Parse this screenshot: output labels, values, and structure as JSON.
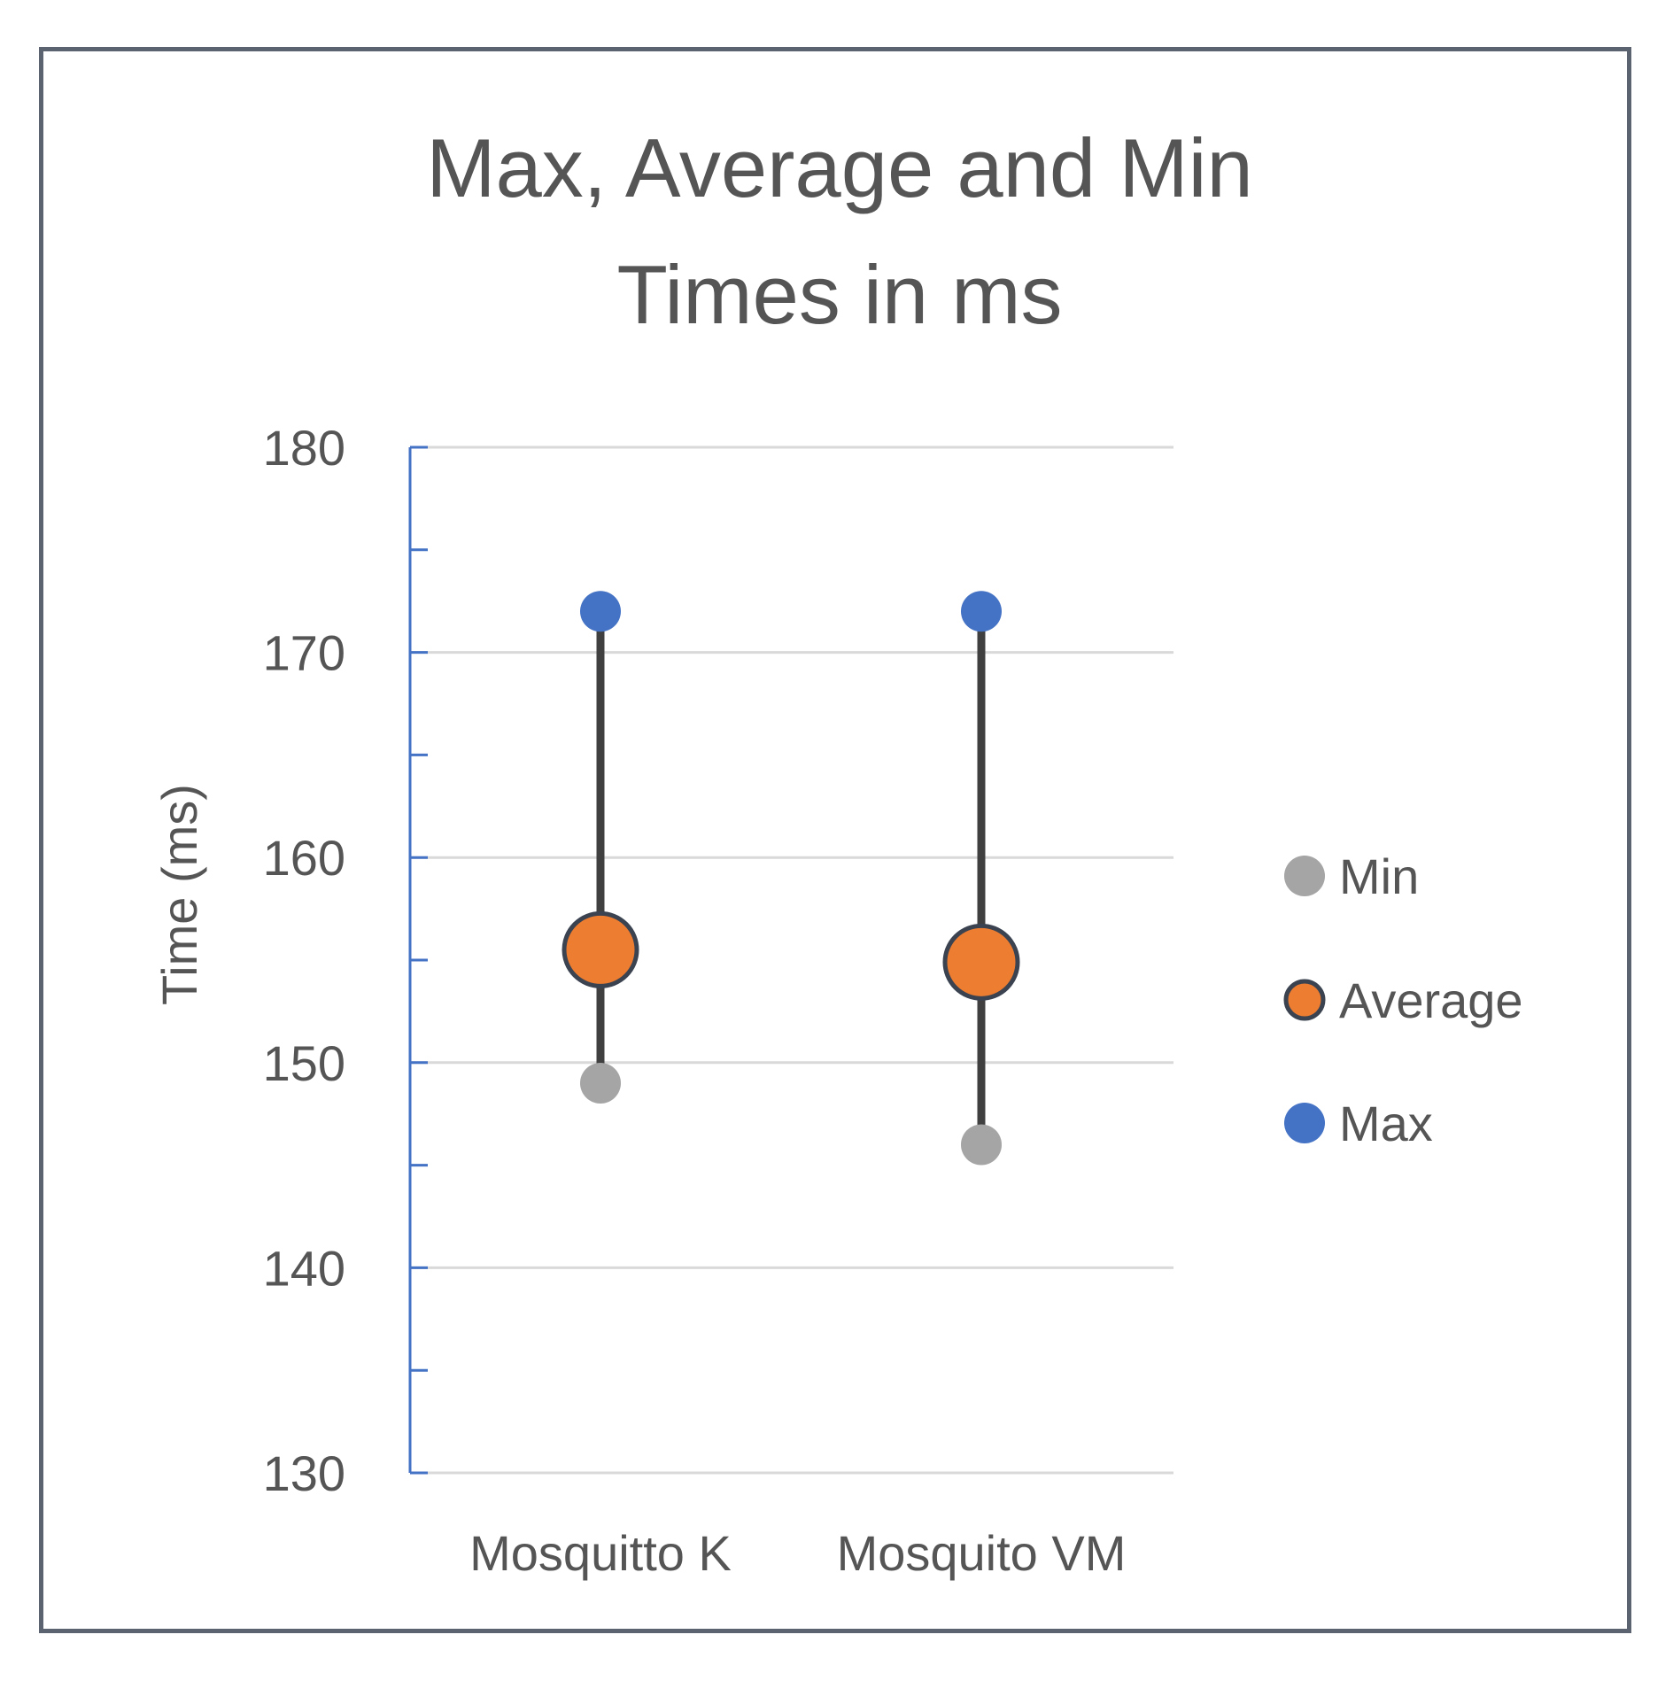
{
  "chart_data": {
    "type": "scatter",
    "title_lines": [
      "Max, Average and Min",
      "Times in ms"
    ],
    "xlabel": "",
    "ylabel": "Time (ms)",
    "categories": [
      "Mosquitto K",
      "Mosquito VM"
    ],
    "ylim": [
      130,
      180
    ],
    "yticks": [
      130,
      140,
      150,
      160,
      170,
      180
    ],
    "grid": true,
    "legend_position": "right",
    "series": [
      {
        "name": "Min",
        "color": "#a5a5a5",
        "values": [
          149,
          146
        ]
      },
      {
        "name": "Average",
        "color": "#ed7d31",
        "values": [
          155.5,
          154.9
        ]
      },
      {
        "name": "Max",
        "color": "#4472c4",
        "values": [
          172,
          172
        ]
      }
    ],
    "range_line_color": "#404040",
    "axis_color": "#4472c4",
    "gridline_color": "#d9d9d9"
  }
}
